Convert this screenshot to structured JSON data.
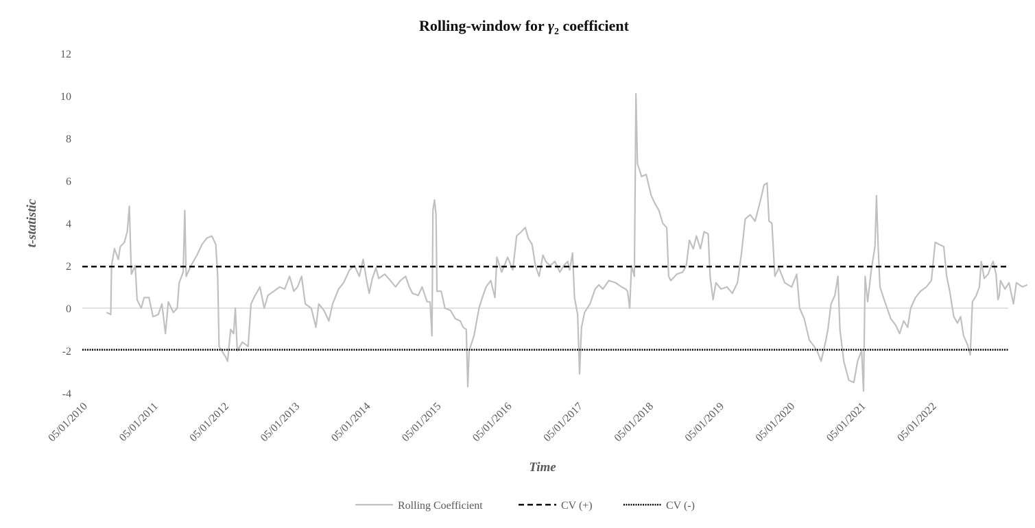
{
  "chart_data": {
    "type": "line",
    "title": {
      "prefix": "Rolling-window for ",
      "symbol": "γ",
      "subscript": "2",
      "suffix": " coefficient"
    },
    "xlabel": "Time",
    "ylabel": "t-statistic",
    "ylim": [
      -4,
      12
    ],
    "yticks": [
      "-4",
      "-2",
      "0",
      "2",
      "4",
      "6",
      "8",
      "10",
      "12"
    ],
    "xlim": [
      "2010-01-05",
      "2022-12-30"
    ],
    "xticks": [
      {
        "date": "2010-01-05",
        "label": "05/01/2010"
      },
      {
        "date": "2011-01-05",
        "label": "05/01/2011"
      },
      {
        "date": "2012-01-05",
        "label": "05/01/2012"
      },
      {
        "date": "2013-01-05",
        "label": "05/01/2013"
      },
      {
        "date": "2014-01-05",
        "label": "05/01/2014"
      },
      {
        "date": "2015-01-05",
        "label": "05/01/2015"
      },
      {
        "date": "2016-01-05",
        "label": "05/01/2016"
      },
      {
        "date": "2017-01-05",
        "label": "05/01/2017"
      },
      {
        "date": "2018-01-05",
        "label": "05/01/2018"
      },
      {
        "date": "2019-01-05",
        "label": "05/01/2019"
      },
      {
        "date": "2020-01-05",
        "label": "05/01/2020"
      },
      {
        "date": "2021-01-05",
        "label": "05/01/2021"
      },
      {
        "date": "2022-01-05",
        "label": "05/01/2022"
      }
    ],
    "grid": false,
    "legend_position": "bottom",
    "series": [
      {
        "name": "Rolling Coefficient",
        "color": "#c0c0c0",
        "style": "solid",
        "points": [
          [
            "2010-05-10",
            -0.2
          ],
          [
            "2010-06-01",
            -0.3
          ],
          [
            "2010-06-05",
            2.0
          ],
          [
            "2010-06-20",
            2.8
          ],
          [
            "2010-07-10",
            2.3
          ],
          [
            "2010-07-20",
            2.9
          ],
          [
            "2010-08-10",
            3.1
          ],
          [
            "2010-08-25",
            3.6
          ],
          [
            "2010-09-05",
            4.8
          ],
          [
            "2010-09-15",
            1.6
          ],
          [
            "2010-10-05",
            2.0
          ],
          [
            "2010-10-15",
            0.4
          ],
          [
            "2010-11-05",
            0.0
          ],
          [
            "2010-11-20",
            0.5
          ],
          [
            "2010-12-15",
            0.5
          ],
          [
            "2011-01-05",
            -0.4
          ],
          [
            "2011-02-01",
            -0.3
          ],
          [
            "2011-02-20",
            0.2
          ],
          [
            "2011-03-10",
            -1.2
          ],
          [
            "2011-03-25",
            0.3
          ],
          [
            "2011-04-20",
            -0.2
          ],
          [
            "2011-05-10",
            0.0
          ],
          [
            "2011-05-20",
            1.2
          ],
          [
            "2011-06-10",
            1.7
          ],
          [
            "2011-06-18",
            4.6
          ],
          [
            "2011-06-25",
            1.5
          ],
          [
            "2011-07-20",
            2.0
          ],
          [
            "2011-08-20",
            2.5
          ],
          [
            "2011-09-15",
            3.0
          ],
          [
            "2011-10-10",
            3.3
          ],
          [
            "2011-11-05",
            3.4
          ],
          [
            "2011-11-25",
            3.0
          ],
          [
            "2011-12-05",
            1.5
          ],
          [
            "2011-12-12",
            -1.8
          ],
          [
            "2012-01-15",
            -2.3
          ],
          [
            "2012-01-25",
            -2.5
          ],
          [
            "2012-02-10",
            -1.0
          ],
          [
            "2012-02-25",
            -1.2
          ],
          [
            "2012-03-05",
            0.0
          ],
          [
            "2012-03-15",
            -2.0
          ],
          [
            "2012-04-10",
            -1.6
          ],
          [
            "2012-05-10",
            -1.8
          ],
          [
            "2012-05-25",
            0.2
          ],
          [
            "2012-06-15",
            0.6
          ],
          [
            "2012-07-10",
            1.0
          ],
          [
            "2012-08-01",
            0.0
          ],
          [
            "2012-08-20",
            0.6
          ],
          [
            "2012-09-20",
            0.8
          ],
          [
            "2012-10-20",
            1.0
          ],
          [
            "2012-11-15",
            0.9
          ],
          [
            "2012-12-10",
            1.5
          ],
          [
            "2013-01-01",
            0.8
          ],
          [
            "2013-01-20",
            1.0
          ],
          [
            "2013-02-10",
            1.5
          ],
          [
            "2013-03-01",
            0.2
          ],
          [
            "2013-04-01",
            0.0
          ],
          [
            "2013-04-25",
            -0.9
          ],
          [
            "2013-05-10",
            0.2
          ],
          [
            "2013-06-05",
            -0.1
          ],
          [
            "2013-07-01",
            -0.6
          ],
          [
            "2013-07-20",
            0.2
          ],
          [
            "2013-08-20",
            0.9
          ],
          [
            "2013-09-15",
            1.2
          ],
          [
            "2013-10-15",
            1.8
          ],
          [
            "2013-11-10",
            2.0
          ],
          [
            "2013-12-05",
            1.5
          ],
          [
            "2013-12-25",
            2.3
          ],
          [
            "2014-01-10",
            1.4
          ],
          [
            "2014-01-25",
            0.7
          ],
          [
            "2014-02-10",
            1.4
          ],
          [
            "2014-03-01",
            1.9
          ],
          [
            "2014-03-15",
            1.4
          ],
          [
            "2014-04-15",
            1.6
          ],
          [
            "2014-05-15",
            1.3
          ],
          [
            "2014-06-10",
            1.0
          ],
          [
            "2014-07-05",
            1.3
          ],
          [
            "2014-08-01",
            1.5
          ],
          [
            "2014-08-20",
            1.0
          ],
          [
            "2014-09-05",
            0.7
          ],
          [
            "2014-10-05",
            0.6
          ],
          [
            "2014-10-25",
            1.0
          ],
          [
            "2014-11-20",
            0.3
          ],
          [
            "2014-12-05",
            0.3
          ],
          [
            "2014-12-15",
            -1.3
          ],
          [
            "2014-12-20",
            4.6
          ],
          [
            "2014-12-28",
            5.1
          ],
          [
            "2015-01-05",
            4.4
          ],
          [
            "2015-01-10",
            0.8
          ],
          [
            "2015-02-01",
            0.8
          ],
          [
            "2015-02-20",
            0.0
          ],
          [
            "2015-03-20",
            -0.1
          ],
          [
            "2015-04-15",
            -0.5
          ],
          [
            "2015-05-10",
            -0.6
          ],
          [
            "2015-05-25",
            -0.9
          ],
          [
            "2015-06-10",
            -1.0
          ],
          [
            "2015-06-18",
            -3.7
          ],
          [
            "2015-06-25",
            -2.0
          ],
          [
            "2015-07-20",
            -1.3
          ],
          [
            "2015-08-15",
            0.0
          ],
          [
            "2015-09-01",
            0.5
          ],
          [
            "2015-09-20",
            1.0
          ],
          [
            "2015-10-15",
            1.3
          ],
          [
            "2015-11-05",
            0.5
          ],
          [
            "2015-11-15",
            2.4
          ],
          [
            "2015-12-10",
            1.7
          ],
          [
            "2016-01-10",
            2.4
          ],
          [
            "2016-02-05",
            1.8
          ],
          [
            "2016-02-25",
            3.4
          ],
          [
            "2016-03-20",
            3.6
          ],
          [
            "2016-04-10",
            3.8
          ],
          [
            "2016-04-25",
            3.3
          ],
          [
            "2016-05-15",
            3.0
          ],
          [
            "2016-06-01",
            2.0
          ],
          [
            "2016-06-20",
            1.5
          ],
          [
            "2016-07-10",
            2.5
          ],
          [
            "2016-07-25",
            2.2
          ],
          [
            "2016-08-15",
            2.0
          ],
          [
            "2016-09-10",
            2.2
          ],
          [
            "2016-10-05",
            1.7
          ],
          [
            "2016-10-25",
            2.0
          ],
          [
            "2016-11-15",
            2.2
          ],
          [
            "2016-11-25",
            1.8
          ],
          [
            "2016-12-10",
            2.6
          ],
          [
            "2016-12-20",
            0.5
          ],
          [
            "2017-01-05",
            -0.3
          ],
          [
            "2017-01-15",
            -3.1
          ],
          [
            "2017-01-25",
            -0.9
          ],
          [
            "2017-02-10",
            -0.2
          ],
          [
            "2017-03-10",
            0.2
          ],
          [
            "2017-04-05",
            0.9
          ],
          [
            "2017-04-25",
            1.1
          ],
          [
            "2017-05-15",
            0.9
          ],
          [
            "2017-06-15",
            1.3
          ],
          [
            "2017-07-20",
            1.2
          ],
          [
            "2017-08-20",
            1.0
          ],
          [
            "2017-09-10",
            0.9
          ],
          [
            "2017-09-20",
            0.8
          ],
          [
            "2017-10-01",
            0.0
          ],
          [
            "2017-10-10",
            2.0
          ],
          [
            "2017-10-25",
            1.5
          ],
          [
            "2017-11-02",
            10.1
          ],
          [
            "2017-11-10",
            6.8
          ],
          [
            "2017-12-01",
            6.2
          ],
          [
            "2017-12-25",
            6.3
          ],
          [
            "2018-01-20",
            5.3
          ],
          [
            "2018-02-10",
            4.9
          ],
          [
            "2018-03-01",
            4.6
          ],
          [
            "2018-03-20",
            4.0
          ],
          [
            "2018-04-10",
            3.8
          ],
          [
            "2018-04-20",
            1.5
          ],
          [
            "2018-05-01",
            1.3
          ],
          [
            "2018-06-01",
            1.6
          ],
          [
            "2018-07-01",
            1.7
          ],
          [
            "2018-07-20",
            2.0
          ],
          [
            "2018-08-05",
            3.2
          ],
          [
            "2018-08-25",
            2.8
          ],
          [
            "2018-09-10",
            3.4
          ],
          [
            "2018-10-01",
            2.8
          ],
          [
            "2018-10-20",
            3.6
          ],
          [
            "2018-11-10",
            3.5
          ],
          [
            "2018-11-20",
            1.5
          ],
          [
            "2018-12-05",
            0.4
          ],
          [
            "2018-12-20",
            1.2
          ],
          [
            "2019-01-15",
            0.9
          ],
          [
            "2019-02-15",
            1.0
          ],
          [
            "2019-03-15",
            0.7
          ],
          [
            "2019-04-10",
            1.2
          ],
          [
            "2019-05-01",
            2.6
          ],
          [
            "2019-05-20",
            4.2
          ],
          [
            "2019-06-15",
            4.4
          ],
          [
            "2019-07-10",
            4.1
          ],
          [
            "2019-08-05",
            5.0
          ],
          [
            "2019-08-25",
            5.8
          ],
          [
            "2019-09-10",
            5.9
          ],
          [
            "2019-09-20",
            4.1
          ],
          [
            "2019-10-05",
            4.0
          ],
          [
            "2019-10-20",
            1.5
          ],
          [
            "2019-11-10",
            1.9
          ],
          [
            "2019-12-10",
            1.2
          ],
          [
            "2020-01-15",
            1.0
          ],
          [
            "2020-02-10",
            1.6
          ],
          [
            "2020-02-25",
            0.0
          ],
          [
            "2020-03-20",
            -0.5
          ],
          [
            "2020-04-15",
            -1.5
          ],
          [
            "2020-05-10",
            -1.8
          ],
          [
            "2020-05-25",
            -2.0
          ],
          [
            "2020-06-15",
            -2.5
          ],
          [
            "2020-07-10",
            -1.5
          ],
          [
            "2020-07-20",
            -1.0
          ],
          [
            "2020-08-05",
            0.2
          ],
          [
            "2020-08-25",
            0.6
          ],
          [
            "2020-09-10",
            1.5
          ],
          [
            "2020-09-20",
            -1.0
          ],
          [
            "2020-10-10",
            -2.5
          ],
          [
            "2020-11-05",
            -3.4
          ],
          [
            "2020-12-01",
            -3.5
          ],
          [
            "2020-12-20",
            -2.5
          ],
          [
            "2021-01-10",
            -2.0
          ],
          [
            "2021-01-20",
            -3.9
          ],
          [
            "2021-01-28",
            1.5
          ],
          [
            "2021-02-10",
            0.3
          ],
          [
            "2021-03-01",
            1.8
          ],
          [
            "2021-03-20",
            2.9
          ],
          [
            "2021-03-28",
            5.3
          ],
          [
            "2021-04-05",
            3.0
          ],
          [
            "2021-04-15",
            1.0
          ],
          [
            "2021-05-10",
            0.3
          ],
          [
            "2021-06-10",
            -0.5
          ],
          [
            "2021-07-05",
            -0.8
          ],
          [
            "2021-07-25",
            -1.2
          ],
          [
            "2021-08-15",
            -0.6
          ],
          [
            "2021-09-05",
            -0.9
          ],
          [
            "2021-09-20",
            0.0
          ],
          [
            "2021-10-15",
            0.5
          ],
          [
            "2021-11-10",
            0.8
          ],
          [
            "2021-12-10",
            1.0
          ],
          [
            "2022-01-05",
            1.3
          ],
          [
            "2022-01-25",
            3.1
          ],
          [
            "2022-02-15",
            3.0
          ],
          [
            "2022-03-10",
            2.9
          ],
          [
            "2022-03-25",
            1.5
          ],
          [
            "2022-04-10",
            0.8
          ],
          [
            "2022-05-01",
            -0.4
          ],
          [
            "2022-05-20",
            -0.7
          ],
          [
            "2022-06-05",
            -0.4
          ],
          [
            "2022-06-20",
            -1.3
          ],
          [
            "2022-07-10",
            -1.7
          ],
          [
            "2022-07-25",
            -2.2
          ],
          [
            "2022-08-05",
            0.3
          ],
          [
            "2022-08-25",
            0.6
          ],
          [
            "2022-09-10",
            1.0
          ],
          [
            "2022-09-20",
            2.2
          ],
          [
            "2022-10-05",
            1.4
          ],
          [
            "2022-10-25",
            1.6
          ],
          [
            "2022-11-10",
            2.0
          ],
          [
            "2022-11-20",
            2.2
          ],
          [
            "2022-12-05",
            1.6
          ],
          [
            "2022-12-15",
            0.4
          ],
          [
            "2022-12-22",
            0.6
          ],
          [
            "2022-12-28",
            1.3
          ],
          [
            "2023-01-20",
            0.9
          ],
          [
            "2023-02-10",
            1.2
          ],
          [
            "2023-03-05",
            0.2
          ],
          [
            "2023-03-20",
            1.2
          ],
          [
            "2023-04-20",
            1.0
          ],
          [
            "2023-05-15",
            1.1
          ]
        ]
      },
      {
        "name": "CV (+)",
        "color": "#000000",
        "style": "dashed",
        "value": 1.96
      },
      {
        "name": "CV (-)",
        "color": "#000000",
        "style": "dotted",
        "value": -1.96
      }
    ]
  }
}
